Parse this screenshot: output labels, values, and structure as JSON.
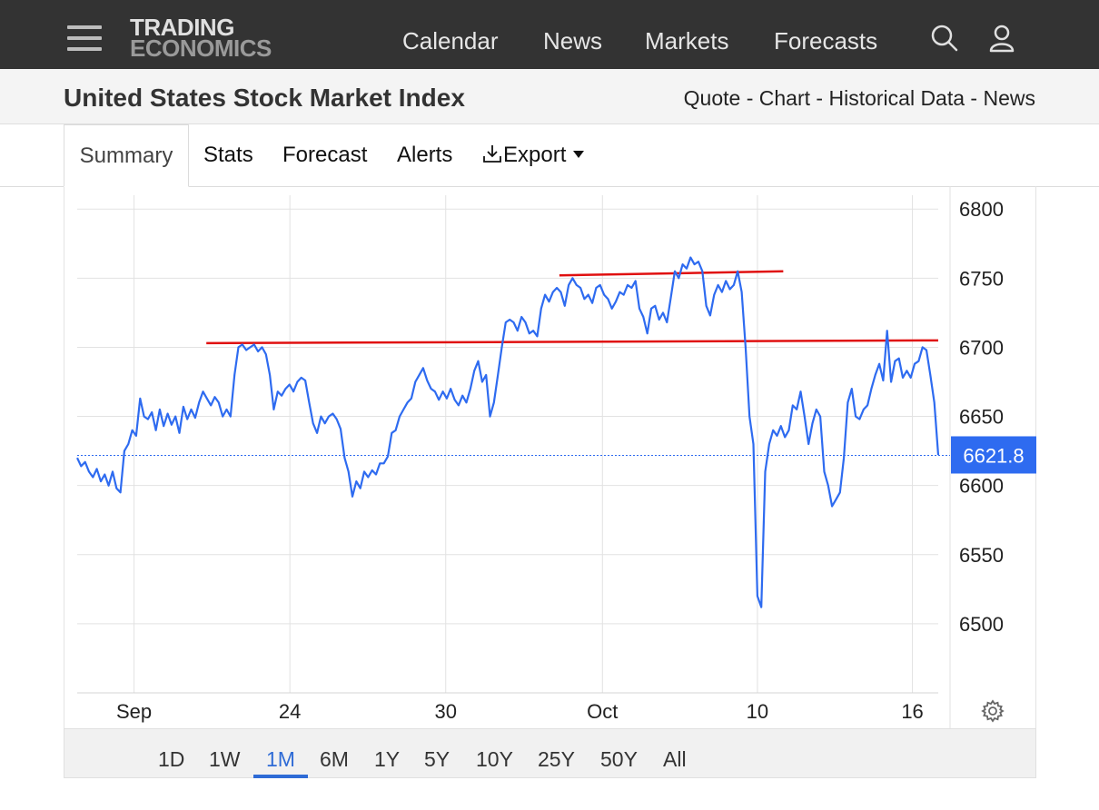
{
  "header": {
    "logo_line1": "TRADING",
    "logo_line2": "ECONOMICS",
    "nav": [
      "Calendar",
      "News",
      "Markets",
      "Forecasts"
    ],
    "icons": [
      "menu-icon",
      "search-icon",
      "user-icon"
    ]
  },
  "title_bar": {
    "title": "United States Stock Market Index",
    "links": [
      "Quote",
      "Chart",
      "Historical Data",
      "News"
    ],
    "separator": " - "
  },
  "tabs": {
    "summary": "Summary",
    "stats": "Stats",
    "forecast": "Forecast",
    "alerts": "Alerts",
    "export": "Export"
  },
  "ranges": {
    "items": [
      "1D",
      "1W",
      "1M",
      "6M",
      "1Y",
      "5Y",
      "10Y",
      "25Y",
      "50Y",
      "All"
    ],
    "selected": "1M"
  },
  "colors": {
    "line": "#2e6bf0",
    "trendline": "#e01010",
    "last_badge": "#2e6bf0",
    "range_active": "#2e6bd6"
  },
  "chart_data": {
    "type": "line",
    "x_tick_labels": [
      "Sep",
      "24",
      "30",
      "Oct",
      "10",
      "16"
    ],
    "y_ticks": [
      6500,
      6550,
      6600,
      6650,
      6700,
      6750,
      6800
    ],
    "ylim": [
      6450,
      6810
    ],
    "last_value_label": "6621.8",
    "last_value": 6621.8,
    "grid": true,
    "series": [
      {
        "values": [
          6620,
          6614,
          6617,
          6610,
          6606,
          6612,
          6603,
          6608,
          6600,
          6610,
          6598,
          6595,
          6625,
          6630,
          6640,
          6636,
          6663,
          6650,
          6648,
          6653,
          6640,
          6655,
          6643,
          6652,
          6644,
          6650,
          6638,
          6657,
          6648,
          6655,
          6649,
          6660,
          6668,
          6663,
          6658,
          6664,
          6660,
          6650,
          6655,
          6650,
          6680,
          6700,
          6702,
          6698,
          6700,
          6702,
          6697,
          6700,
          6695,
          6680,
          6655,
          6668,
          6665,
          6670,
          6673,
          6668,
          6675,
          6678,
          6676,
          6660,
          6645,
          6638,
          6650,
          6645,
          6650,
          6652,
          6648,
          6641,
          6620,
          6610,
          6592,
          6603,
          6598,
          6610,
          6606,
          6611,
          6608,
          6616,
          6616,
          6621,
          6638,
          6640,
          6650,
          6655,
          6660,
          6663,
          6675,
          6680,
          6685,
          6676,
          6670,
          6668,
          6662,
          6668,
          6663,
          6670,
          6662,
          6658,
          6665,
          6660,
          6670,
          6683,
          6690,
          6675,
          6680,
          6650,
          6660,
          6680,
          6700,
          6718,
          6720,
          6718,
          6712,
          6722,
          6718,
          6710,
          6712,
          6708,
          6728,
          6738,
          6733,
          6740,
          6743,
          6740,
          6730,
          6745,
          6750,
          6745,
          6743,
          6735,
          6738,
          6732,
          6743,
          6745,
          6738,
          6735,
          6728,
          6733,
          6740,
          6738,
          6745,
          6743,
          6748,
          6728,
          6722,
          6710,
          6728,
          6730,
          6720,
          6725,
          6718,
          6736,
          6755,
          6750,
          6760,
          6757,
          6765,
          6760,
          6762,
          6755,
          6730,
          6723,
          6738,
          6745,
          6740,
          6748,
          6742,
          6745,
          6755,
          6740,
          6700,
          6650,
          6630,
          6520,
          6512,
          6610,
          6630,
          6640,
          6636,
          6643,
          6635,
          6640,
          6658,
          6655,
          6668,
          6650,
          6630,
          6645,
          6655,
          6650,
          6610,
          6600,
          6585,
          6590,
          6595,
          6620,
          6660,
          6670,
          6650,
          6648,
          6655,
          6658,
          6670,
          6680,
          6688,
          6676,
          6712,
          6675,
          6690,
          6692,
          6678,
          6683,
          6678,
          6688,
          6690,
          6700,
          6698,
          6680,
          6660,
          6622
        ]
      }
    ],
    "trendlines": [
      {
        "from": {
          "x": 0.15,
          "y": 6703
        },
        "to": {
          "x": 1.0,
          "y": 6705
        }
      },
      {
        "from": {
          "x": 0.56,
          "y": 6752
        },
        "to": {
          "x": 0.82,
          "y": 6755
        }
      }
    ]
  }
}
